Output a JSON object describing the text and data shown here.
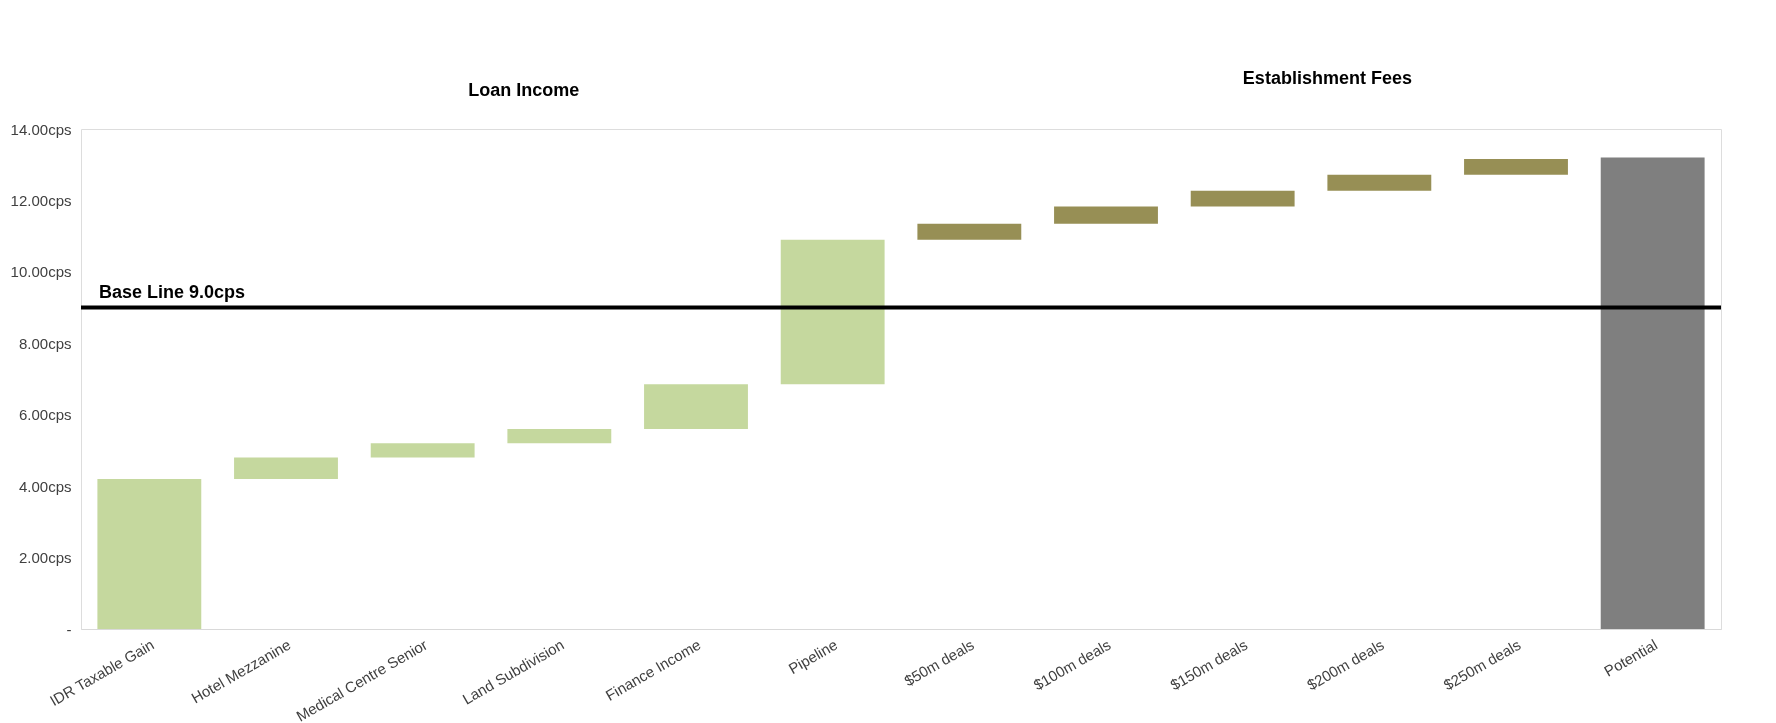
{
  "chart_data": {
    "type": "bar",
    "categories": [
      "IDR Taxable Gain",
      "Hotel Mezzanine",
      "Medical Centre Senior",
      "Land Subdivision",
      "Finance Income",
      "Pipeline",
      "$50m deals",
      "$100m deals",
      "$150m deals",
      "$200m deals",
      "$250m deals",
      "Potential"
    ],
    "values": [
      4.2,
      0.6,
      0.4,
      0.4,
      1.25,
      4.05,
      0.45,
      0.48,
      0.44,
      0.45,
      0.44,
      13.2
    ],
    "base": [
      0,
      4.2,
      4.8,
      5.2,
      5.6,
      6.85,
      10.9,
      11.35,
      11.83,
      12.27,
      12.72,
      0
    ],
    "colors": [
      "#c5d89e",
      "#c5d89e",
      "#c5d89e",
      "#c5d89e",
      "#c5d89e",
      "#c5d89e",
      "#978f55",
      "#978f55",
      "#978f55",
      "#978f55",
      "#978f55",
      "#7f7f7f"
    ],
    "ylim": [
      0,
      14
    ],
    "yticks": [
      {
        "value": 0,
        "label": "-"
      },
      {
        "value": 2,
        "label": "2.00cps"
      },
      {
        "value": 4,
        "label": "4.00cps"
      },
      {
        "value": 6,
        "label": "6.00cps"
      },
      {
        "value": 8,
        "label": "8.00cps"
      },
      {
        "value": 10,
        "label": "10.00cps"
      },
      {
        "value": 12,
        "label": "12.00cps"
      },
      {
        "value": 14,
        "label": "14.00cps"
      }
    ],
    "ref_lines": [
      {
        "axis": "y",
        "value": 9.0,
        "label": "Base Line 9.0cps",
        "color": "#000000"
      }
    ],
    "annotations": [
      "Loan Income",
      "Establishment Fees"
    ],
    "grid": false
  }
}
